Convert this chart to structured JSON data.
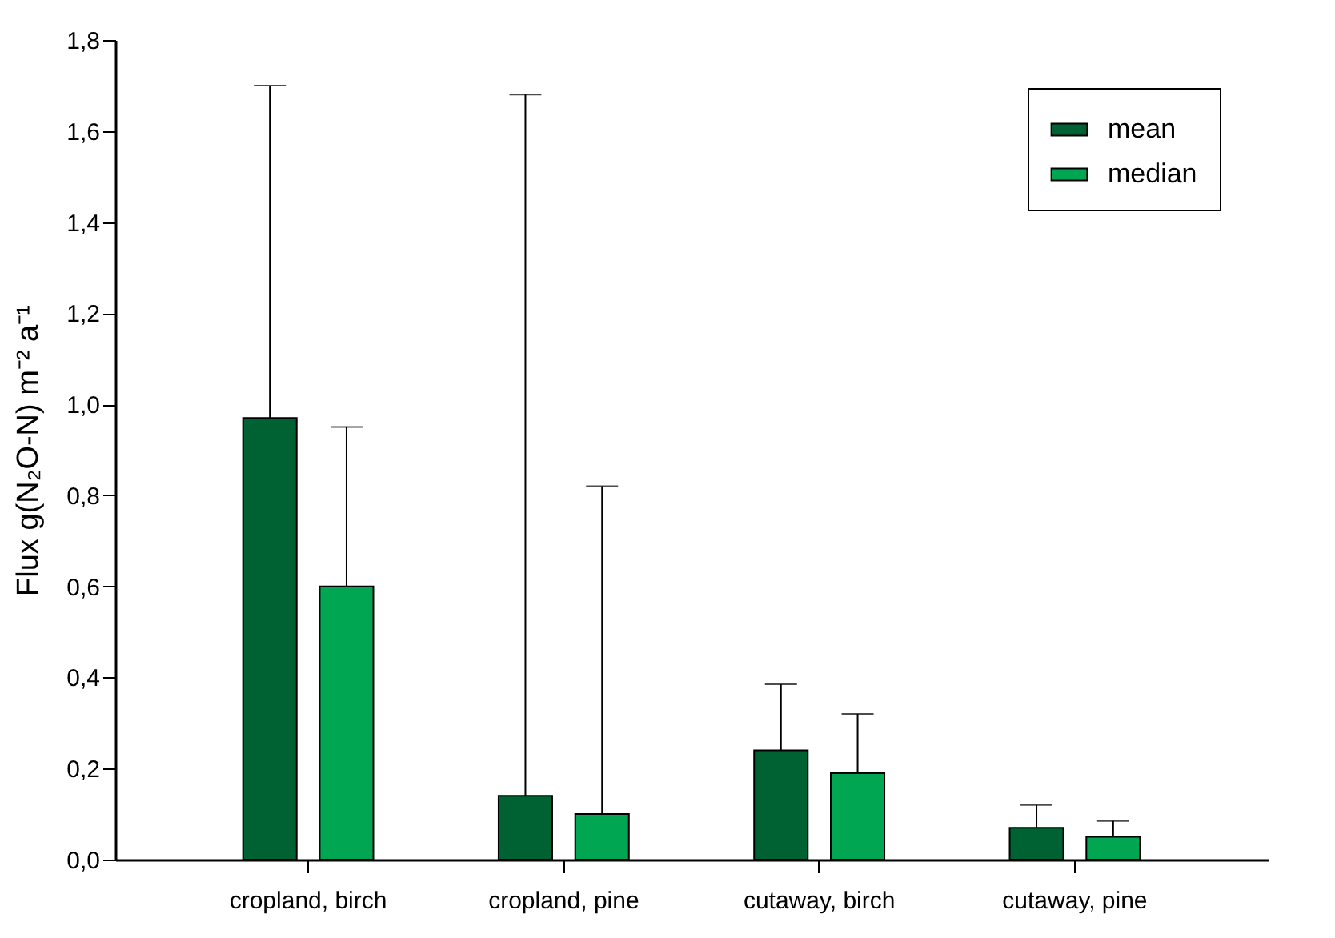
{
  "chart_data": {
    "type": "bar",
    "ylabel": "Flux  g(N₂O-N) m⁻² a⁻¹",
    "categories": [
      "cropland, birch",
      "cropland, pine",
      "cutaway, birch",
      "cutaway, pine"
    ],
    "series": [
      {
        "name": "mean",
        "color": "#006233",
        "values": [
          0.97,
          0.14,
          0.24,
          0.07
        ],
        "errors": [
          [
            0.97,
            1.7
          ],
          [
            0.14,
            1.68
          ],
          [
            0.24,
            0.385
          ],
          [
            0.07,
            0.12
          ]
        ]
      },
      {
        "name": "median",
        "color": "#00a651",
        "values": [
          0.6,
          0.1,
          0.19,
          0.05
        ],
        "errors": [
          [
            0.6,
            0.95
          ],
          [
            0.1,
            0.82
          ],
          [
            0.19,
            0.32
          ],
          [
            0.05,
            0.085
          ]
        ]
      }
    ],
    "ylim": [
      0,
      1.8
    ],
    "yticks": [
      {
        "value": 0,
        "label": "0,0"
      },
      {
        "value": 0.2,
        "label": "0,2"
      },
      {
        "value": 0.4,
        "label": "0,4"
      },
      {
        "value": 0.6,
        "label": "0,6"
      },
      {
        "value": 0.8,
        "label": "0,8"
      },
      {
        "value": 1.0,
        "label": "1,0"
      },
      {
        "value": 1.2,
        "label": "1,2"
      },
      {
        "value": 1.4,
        "label": "1,4"
      },
      {
        "value": 1.6,
        "label": "1,6"
      },
      {
        "value": 1.8,
        "label": "1,8"
      }
    ],
    "grid": false,
    "legend": "top right"
  }
}
